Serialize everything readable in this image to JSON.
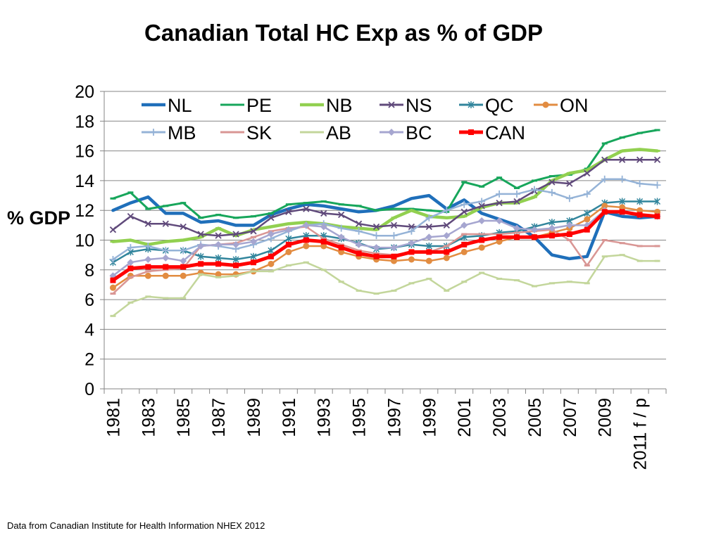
{
  "chart_data": {
    "type": "line",
    "title": "Canadian Total HC Exp as % of GDP",
    "xlabel": "",
    "ylabel": "% GDP",
    "ylim": [
      0,
      20
    ],
    "yticks": [
      0,
      2,
      4,
      6,
      8,
      10,
      12,
      14,
      16,
      18,
      20
    ],
    "x": [
      1981,
      1982,
      1983,
      1984,
      1985,
      1986,
      1987,
      1988,
      1989,
      1990,
      1991,
      1992,
      1993,
      1994,
      1995,
      1996,
      1997,
      1998,
      1999,
      2000,
      2001,
      2002,
      2003,
      2004,
      2005,
      2006,
      2007,
      2008,
      2009,
      2010,
      2011,
      2012
    ],
    "xtick_labels": [
      "1981",
      "1983",
      "1985",
      "1987",
      "1989",
      "1991",
      "1993",
      "1995",
      "1997",
      "1999",
      "2001",
      "2003",
      "2005",
      "2007",
      "2009",
      "2011 f / p"
    ],
    "legend_position": "top",
    "series": [
      {
        "name": "NL",
        "color": "#1f6fba",
        "marker": "none",
        "width": 4.5,
        "values": [
          12.0,
          12.5,
          12.9,
          11.8,
          11.8,
          11.2,
          11.3,
          11.0,
          11.0,
          11.7,
          12.1,
          12.4,
          12.3,
          12.1,
          11.9,
          12.0,
          12.3,
          12.8,
          13.0,
          12.1,
          12.7,
          11.8,
          11.4,
          11.0,
          10.2,
          9.0,
          8.75,
          8.9,
          11.9,
          11.6,
          11.5,
          11.6
        ]
      },
      {
        "name": "PE",
        "color": "#17a65b",
        "marker": "dash",
        "width": 3,
        "values": [
          12.8,
          13.2,
          12.1,
          12.3,
          12.5,
          11.5,
          11.7,
          11.5,
          11.6,
          11.8,
          12.4,
          12.5,
          12.6,
          12.4,
          12.3,
          12.0,
          12.1,
          12.1,
          12.0,
          11.9,
          13.9,
          13.6,
          14.2,
          13.5,
          14.0,
          14.3,
          14.4,
          14.8,
          16.5,
          16.9,
          17.2,
          17.4
        ]
      },
      {
        "name": "NB",
        "color": "#92d050",
        "marker": "dash",
        "width": 4.5,
        "values": [
          9.9,
          10.0,
          9.7,
          9.9,
          10.0,
          10.2,
          10.8,
          10.3,
          10.7,
          10.9,
          11.1,
          11.2,
          11.1,
          10.9,
          10.8,
          10.7,
          11.5,
          12.0,
          11.6,
          11.5,
          11.6,
          12.2,
          12.5,
          12.5,
          12.9,
          14.0,
          14.5,
          14.7,
          15.4,
          16.0,
          16.1,
          16.0
        ]
      },
      {
        "name": "NS",
        "color": "#604a7b",
        "marker": "x",
        "width": 2.5,
        "values": [
          10.7,
          11.6,
          11.1,
          11.1,
          10.9,
          10.4,
          10.3,
          10.4,
          10.6,
          11.5,
          11.9,
          12.1,
          11.8,
          11.7,
          11.1,
          10.9,
          11.0,
          10.9,
          10.9,
          11.0,
          11.9,
          12.3,
          12.5,
          12.6,
          13.3,
          13.9,
          13.8,
          14.5,
          15.4,
          15.4,
          15.4,
          15.4
        ]
      },
      {
        "name": "QC",
        "color": "#31859c",
        "marker": "star",
        "width": 2.5,
        "values": [
          8.5,
          9.2,
          9.4,
          9.3,
          9.3,
          8.9,
          8.8,
          8.7,
          8.9,
          9.3,
          10.1,
          10.3,
          10.3,
          10.1,
          9.8,
          9.4,
          9.5,
          9.7,
          9.6,
          9.6,
          10.2,
          10.3,
          10.5,
          10.6,
          10.9,
          11.2,
          11.3,
          11.8,
          12.5,
          12.6,
          12.6,
          12.6
        ]
      },
      {
        "name": "ON",
        "color": "#e28c41",
        "marker": "circle",
        "width": 2.5,
        "values": [
          6.8,
          7.6,
          7.6,
          7.6,
          7.6,
          7.8,
          7.7,
          7.7,
          7.9,
          8.4,
          9.2,
          9.6,
          9.6,
          9.2,
          8.9,
          8.7,
          8.6,
          8.7,
          8.6,
          8.8,
          9.2,
          9.5,
          9.9,
          10.2,
          10.2,
          10.5,
          10.8,
          11.4,
          12.3,
          12.2,
          12.0,
          11.9
        ]
      },
      {
        "name": "MB",
        "color": "#95b3d7",
        "marker": "plus",
        "width": 2.5,
        "values": [
          8.7,
          9.5,
          9.6,
          9.3,
          9.3,
          9.7,
          9.6,
          9.4,
          9.7,
          10.1,
          10.6,
          11.0,
          11.1,
          10.8,
          10.6,
          10.3,
          10.3,
          10.6,
          11.5,
          12.0,
          12.4,
          12.6,
          13.1,
          13.1,
          13.4,
          13.2,
          12.8,
          13.1,
          14.1,
          14.1,
          13.8,
          13.7
        ]
      },
      {
        "name": "SK",
        "color": "#d99694",
        "marker": "dash",
        "width": 2.5,
        "values": [
          6.4,
          7.5,
          7.9,
          8.0,
          8.1,
          9.6,
          9.7,
          9.8,
          10.2,
          10.6,
          10.8,
          10.9,
          10.1,
          9.7,
          9.3,
          9.1,
          9.0,
          9.2,
          9.2,
          9.6,
          10.4,
          10.4,
          10.4,
          10.5,
          10.6,
          10.7,
          10.0,
          8.3,
          10.0,
          9.8,
          9.6,
          9.6
        ]
      },
      {
        "name": "AB",
        "color": "#c3d69b",
        "marker": "dash",
        "width": 2.5,
        "values": [
          4.9,
          5.8,
          6.2,
          6.1,
          6.1,
          7.7,
          7.5,
          7.6,
          7.9,
          7.9,
          8.3,
          8.5,
          8.0,
          7.2,
          6.6,
          6.4,
          6.6,
          7.1,
          7.4,
          6.6,
          7.2,
          7.8,
          7.4,
          7.3,
          6.9,
          7.1,
          7.2,
          7.1,
          8.9,
          9.0,
          8.6,
          8.6
        ]
      },
      {
        "name": "BC",
        "color": "#a6a6d0",
        "marker": "diamond",
        "width": 2.5,
        "values": [
          7.6,
          8.5,
          8.7,
          8.8,
          8.6,
          9.6,
          9.7,
          9.7,
          9.9,
          10.4,
          10.7,
          11.0,
          10.9,
          10.2,
          9.7,
          9.5,
          9.5,
          9.8,
          10.2,
          10.3,
          11.0,
          11.3,
          11.3,
          10.8,
          10.7,
          10.8,
          11.0,
          11.0,
          12.0,
          11.9,
          11.7,
          11.6
        ]
      },
      {
        "name": "CAN",
        "color": "#ff0000",
        "marker": "square",
        "width": 5,
        "values": [
          7.3,
          8.1,
          8.2,
          8.2,
          8.2,
          8.4,
          8.4,
          8.3,
          8.5,
          8.9,
          9.7,
          10.0,
          9.9,
          9.5,
          9.1,
          8.9,
          8.9,
          9.2,
          9.2,
          9.2,
          9.7,
          10.0,
          10.2,
          10.2,
          10.2,
          10.3,
          10.4,
          10.7,
          11.9,
          11.9,
          11.7,
          11.6
        ]
      }
    ]
  },
  "source_note": "Data from Canadian Institute for Health Information NHEX 2012"
}
